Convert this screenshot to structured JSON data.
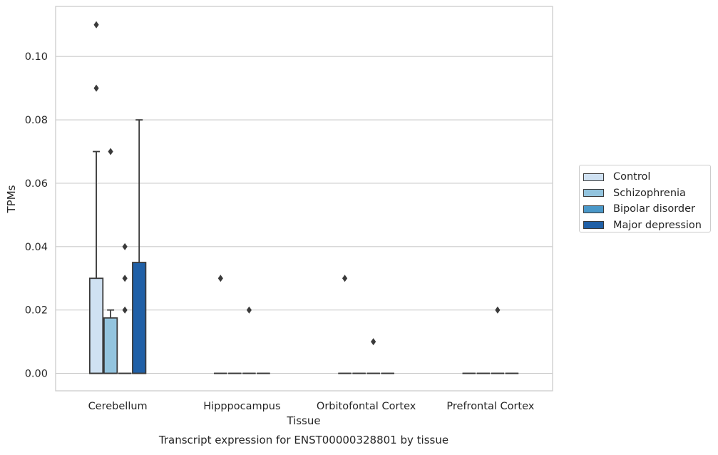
{
  "chart_data": {
    "type": "box",
    "title": "Transcript expression for ENST00000328801 by tissue",
    "xlabel": "Tissue",
    "ylabel": "TPMs",
    "ylim": [
      -0.0055,
      0.1158
    ],
    "yticks": [
      "0.00",
      "0.02",
      "0.04",
      "0.06",
      "0.08",
      "0.10"
    ],
    "ytick_values": [
      0.0,
      0.02,
      0.04,
      0.06,
      0.08,
      0.1
    ],
    "grid": true,
    "legend_position": "right",
    "categories": [
      "Cerebellum",
      "Hipppocampus",
      "Orbitofontal Cortex",
      "Prefrontal Cortex"
    ],
    "series": [
      {
        "name": "Control",
        "color": "#cfe1f2",
        "boxes": [
          {
            "category": "Cerebellum",
            "min": 0.0,
            "q1": 0.0,
            "median": 0.0,
            "q3": 0.03,
            "max": 0.07,
            "outliers": [
              0.09,
              0.11
            ]
          },
          {
            "category": "Hipppocampus",
            "min": 0.0,
            "q1": 0.0,
            "median": 0.0,
            "q3": 0.0,
            "max": 0.0,
            "outliers": [
              0.03
            ]
          },
          {
            "category": "Orbitofontal Cortex",
            "min": 0.0,
            "q1": 0.0,
            "median": 0.0,
            "q3": 0.0,
            "max": 0.0,
            "outliers": [
              0.03
            ]
          },
          {
            "category": "Prefrontal Cortex",
            "min": 0.0,
            "q1": 0.0,
            "median": 0.0,
            "q3": 0.0,
            "max": 0.0,
            "outliers": []
          }
        ]
      },
      {
        "name": "Schizophrenia",
        "color": "#93c4de",
        "boxes": [
          {
            "category": "Cerebellum",
            "min": 0.0,
            "q1": 0.0,
            "median": 0.0,
            "q3": 0.0175,
            "max": 0.02,
            "outliers": [
              0.07
            ]
          },
          {
            "category": "Hipppocampus",
            "min": 0.0,
            "q1": 0.0,
            "median": 0.0,
            "q3": 0.0,
            "max": 0.0,
            "outliers": []
          },
          {
            "category": "Orbitofontal Cortex",
            "min": 0.0,
            "q1": 0.0,
            "median": 0.0,
            "q3": 0.0,
            "max": 0.0,
            "outliers": []
          },
          {
            "category": "Prefrontal Cortex",
            "min": 0.0,
            "q1": 0.0,
            "median": 0.0,
            "q3": 0.0,
            "max": 0.0,
            "outliers": []
          }
        ]
      },
      {
        "name": "Bipolar disorder",
        "color": "#4a98c9",
        "boxes": [
          {
            "category": "Cerebellum",
            "min": 0.0,
            "q1": 0.0,
            "median": 0.0,
            "q3": 0.0,
            "max": 0.0,
            "outliers": [
              0.02,
              0.03,
              0.04
            ]
          },
          {
            "category": "Hipppocampus",
            "min": 0.0,
            "q1": 0.0,
            "median": 0.0,
            "q3": 0.0,
            "max": 0.0,
            "outliers": [
              0.02
            ]
          },
          {
            "category": "Orbitofontal Cortex",
            "min": 0.0,
            "q1": 0.0,
            "median": 0.0,
            "q3": 0.0,
            "max": 0.0,
            "outliers": [
              0.01
            ]
          },
          {
            "category": "Prefrontal Cortex",
            "min": 0.0,
            "q1": 0.0,
            "median": 0.0,
            "q3": 0.0,
            "max": 0.0,
            "outliers": [
              0.02
            ]
          }
        ]
      },
      {
        "name": "Major depression",
        "color": "#2060a7",
        "boxes": [
          {
            "category": "Cerebellum",
            "min": 0.0,
            "q1": 0.0,
            "median": 0.0,
            "q3": 0.035,
            "max": 0.08,
            "outliers": []
          },
          {
            "category": "Hipppocampus",
            "min": 0.0,
            "q1": 0.0,
            "median": 0.0,
            "q3": 0.0,
            "max": 0.0,
            "outliers": []
          },
          {
            "category": "Orbitofontal Cortex",
            "min": 0.0,
            "q1": 0.0,
            "median": 0.0,
            "q3": 0.0,
            "max": 0.0,
            "outliers": []
          },
          {
            "category": "Prefrontal Cortex",
            "min": 0.0,
            "q1": 0.0,
            "median": 0.0,
            "q3": 0.0,
            "max": 0.0,
            "outliers": []
          }
        ]
      }
    ]
  },
  "colors": {
    "grid": "#cccccc",
    "axis_frame": "#cccccc",
    "box_edge": "#3a3a3a",
    "background": "#ffffff"
  }
}
